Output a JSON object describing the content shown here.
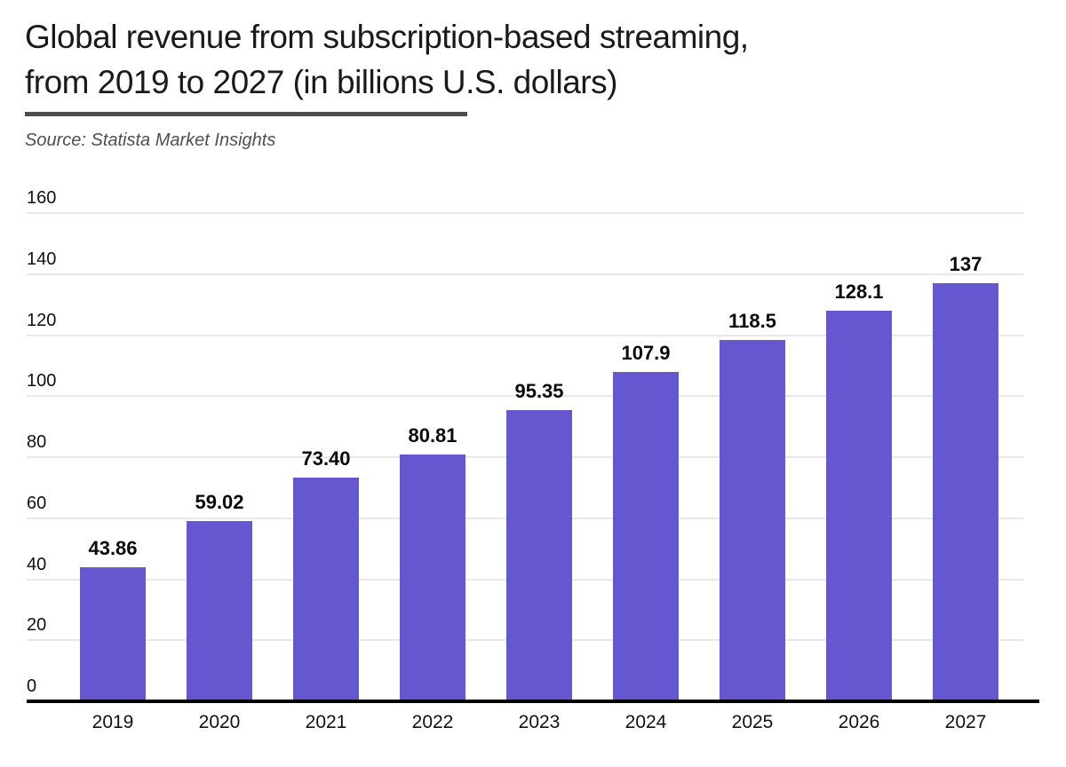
{
  "header": {
    "title_line1": "Global revenue from subscription-based streaming,",
    "title_line2": "from 2019 to 2027 (in billions U.S. dollars)",
    "source": "Source: Statista Market Insights"
  },
  "colors": {
    "bar": "#6557d0",
    "grid": "#e8e8e8",
    "axis": "#000000",
    "title_text": "#1a1a1a",
    "source_text": "#4f4f4f",
    "tick_text": "#111111",
    "value_label_text": "#0a0a0a"
  },
  "chart_data": {
    "type": "bar",
    "title": "Global revenue from subscription-based streaming, from 2019 to 2027 (in billions U.S. dollars)",
    "source": "Source: Statista Market Insights",
    "categories": [
      "2019",
      "2020",
      "2021",
      "2022",
      "2023",
      "2024",
      "2025",
      "2026",
      "2027"
    ],
    "values": [
      43.86,
      59.02,
      73.4,
      80.81,
      95.35,
      107.9,
      118.5,
      128.1,
      137
    ],
    "value_labels": [
      "43.86",
      "59.02",
      "73.40",
      "80.81",
      "95.35",
      "107.9",
      "118.5",
      "128.1",
      "137"
    ],
    "xlabel": "",
    "ylabel": "",
    "ylim": [
      0,
      160
    ],
    "yticks": [
      0,
      20,
      40,
      60,
      80,
      100,
      120,
      140,
      160
    ],
    "grid": true,
    "legend": false
  }
}
